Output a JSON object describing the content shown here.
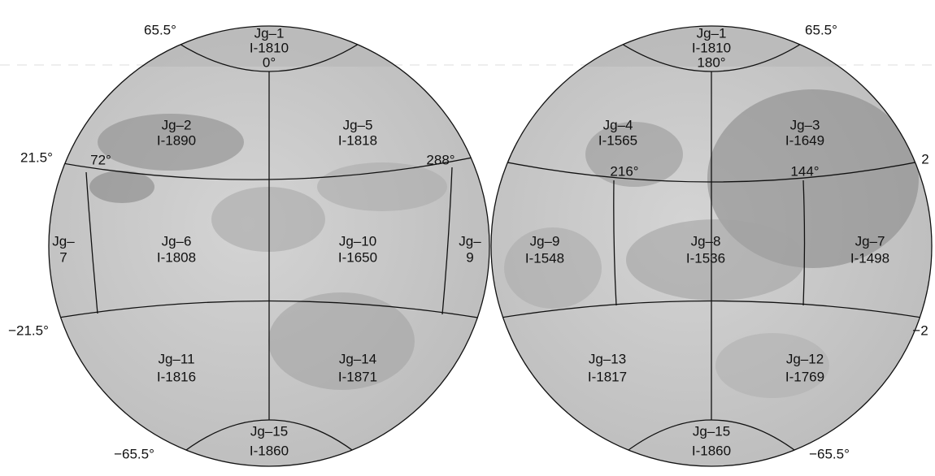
{
  "hemispheres": [
    {
      "quadrangles": [
        {
          "lines": [
            "Jg–1",
            "I-1810",
            "0°"
          ]
        },
        {
          "lines": [
            "Jg–2",
            "I-1890"
          ]
        },
        {
          "lines": [
            "Jg–5",
            "I-1818"
          ]
        },
        {
          "lines": [
            "Jg–6",
            "I-1808"
          ]
        },
        {
          "lines": [
            "Jg–10",
            "I-1650"
          ]
        },
        {
          "lines": [
            "Jg–",
            "7"
          ]
        },
        {
          "lines": [
            "Jg–",
            "9"
          ]
        },
        {
          "lines": [
            "Jg–11",
            "I-1816"
          ]
        },
        {
          "lines": [
            "Jg–14",
            "I-1871"
          ]
        },
        {
          "lines": [
            "Jg–15",
            "I-1860"
          ]
        }
      ],
      "coordinates": [
        "65.5°",
        "21.5°",
        "72°",
        "288°",
        "−21.5°",
        "−65.5°"
      ]
    },
    {
      "quadrangles": [
        {
          "lines": [
            "Jg–1",
            "I-1810",
            "180°"
          ]
        },
        {
          "lines": [
            "Jg–4",
            "I-1565"
          ]
        },
        {
          "lines": [
            "Jg–3",
            "I-1649"
          ]
        },
        {
          "lines": [
            "Jg–9",
            "I-1548"
          ]
        },
        {
          "lines": [
            "Jg–8",
            "I-1536"
          ]
        },
        {
          "lines": [
            "Jg–7",
            "I-1498"
          ]
        },
        {
          "lines": [
            "Jg–13",
            "I-1817"
          ]
        },
        {
          "lines": [
            "Jg–12",
            "I-1769"
          ]
        },
        {
          "lines": [
            "Jg–15",
            "I-1860"
          ]
        }
      ],
      "coordinates": [
        "65.5°",
        "2",
        "216°",
        "144°",
        "−2",
        "−65.5°"
      ]
    }
  ]
}
